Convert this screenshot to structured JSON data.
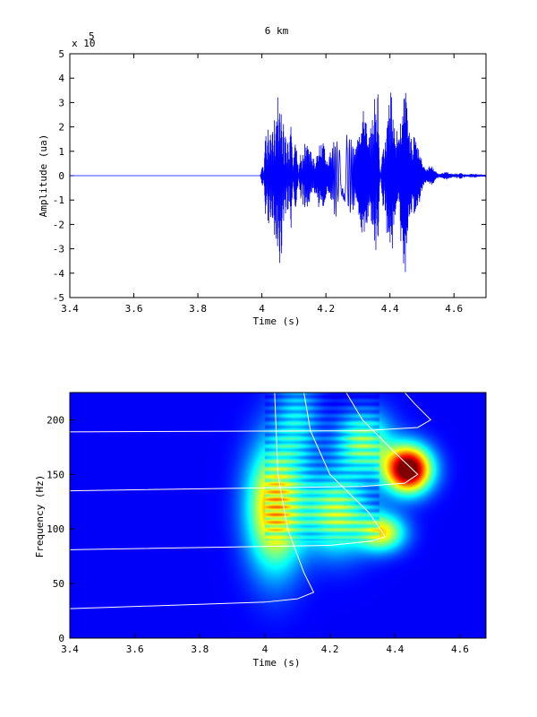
{
  "chart_data": [
    {
      "type": "line",
      "title": "6 km",
      "xlabel": "Time (s)",
      "ylabel": "Amplitude (ua)",
      "y_multiplier_label": "x 10",
      "y_multiplier_exponent": "5",
      "xlim": [
        3.4,
        4.7
      ],
      "ylim": [
        -5,
        5
      ],
      "x_ticks": [
        "3.4",
        "3.6",
        "3.8",
        "4",
        "4.2",
        "4.4",
        "4.6"
      ],
      "x_tick_values": [
        3.4,
        3.6,
        3.8,
        4.0,
        4.2,
        4.4,
        4.6
      ],
      "y_ticks": [
        "5",
        "4",
        "3",
        "2",
        "1",
        "0",
        "-1",
        "-2",
        "-3",
        "-4",
        "-5"
      ],
      "y_tick_values": [
        5,
        4,
        3,
        2,
        1,
        0,
        -1,
        -2,
        -3,
        -4,
        -5
      ],
      "series": [
        {
          "color": "#0000ff",
          "description_points": [
            {
              "t": 3.4,
              "env": 0
            },
            {
              "t": 3.995,
              "env": 0
            },
            {
              "t": 4.01,
              "env": 1.5
            },
            {
              "t": 4.03,
              "env": 4.5
            },
            {
              "t": 4.06,
              "env": 3.8
            },
            {
              "t": 4.1,
              "env": 2.2
            },
            {
              "t": 4.15,
              "env": 1.4
            },
            {
              "t": 4.2,
              "env": 1.6
            },
            {
              "t": 4.26,
              "env": 1.9
            },
            {
              "t": 4.3,
              "env": 2.6
            },
            {
              "t": 4.34,
              "env": 4.0
            },
            {
              "t": 4.38,
              "env": 3.2
            },
            {
              "t": 4.42,
              "env": 3.8
            },
            {
              "t": 4.45,
              "env": 4.5
            },
            {
              "t": 4.47,
              "env": 3.0
            },
            {
              "t": 4.5,
              "env": 0.8
            },
            {
              "t": 4.55,
              "env": 0.2
            },
            {
              "t": 4.7,
              "env": 0.05
            }
          ]
        }
      ]
    },
    {
      "type": "heatmap",
      "xlabel": "Time (s)",
      "ylabel": "Frequency (Hz)",
      "xlim": [
        3.4,
        4.68
      ],
      "ylim": [
        0,
        225
      ],
      "x_ticks": [
        "3.4",
        "3.6",
        "3.8",
        "4",
        "4.2",
        "4.4",
        "4.6"
      ],
      "x_tick_values": [
        3.4,
        3.6,
        3.8,
        4.0,
        4.2,
        4.4,
        4.6
      ],
      "y_ticks": [
        "200",
        "150",
        "100",
        "50",
        "0"
      ],
      "y_tick_values": [
        200,
        150,
        100,
        50,
        0
      ],
      "colormap": "jet",
      "energy_blobs": [
        {
          "t": 4.03,
          "f": 120,
          "st": 0.06,
          "sf": 40,
          "a": 0.65
        },
        {
          "t": 4.22,
          "f": 115,
          "st": 0.07,
          "sf": 25,
          "a": 0.5
        },
        {
          "t": 4.36,
          "f": 97,
          "st": 0.05,
          "sf": 12,
          "a": 0.5
        },
        {
          "t": 4.3,
          "f": 180,
          "st": 0.06,
          "sf": 20,
          "a": 0.45
        },
        {
          "t": 4.44,
          "f": 155,
          "st": 0.05,
          "sf": 15,
          "a": 1.0
        },
        {
          "t": 4.1,
          "f": 200,
          "st": 0.05,
          "sf": 30,
          "a": 0.25
        }
      ],
      "dispersion_curves": [
        [
          [
            3.4,
            27
          ],
          [
            4.0,
            33
          ],
          [
            4.1,
            36
          ],
          [
            4.15,
            42
          ],
          [
            4.12,
            60
          ],
          [
            4.07,
            100
          ],
          [
            4.04,
            150
          ],
          [
            4.03,
            225
          ]
        ],
        [
          [
            3.4,
            81
          ],
          [
            4.2,
            85
          ],
          [
            4.33,
            89
          ],
          [
            4.37,
            93
          ],
          [
            4.32,
            115
          ],
          [
            4.2,
            150
          ],
          [
            4.14,
            190
          ],
          [
            4.12,
            225
          ]
        ],
        [
          [
            3.4,
            135
          ],
          [
            4.3,
            139
          ],
          [
            4.43,
            142
          ],
          [
            4.47,
            150
          ],
          [
            4.4,
            170
          ],
          [
            4.3,
            200
          ],
          [
            4.25,
            225
          ]
        ],
        [
          [
            3.4,
            189
          ],
          [
            4.3,
            190
          ],
          [
            4.47,
            193
          ],
          [
            4.51,
            200
          ],
          [
            4.46,
            215
          ],
          [
            4.43,
            225
          ]
        ]
      ]
    }
  ]
}
